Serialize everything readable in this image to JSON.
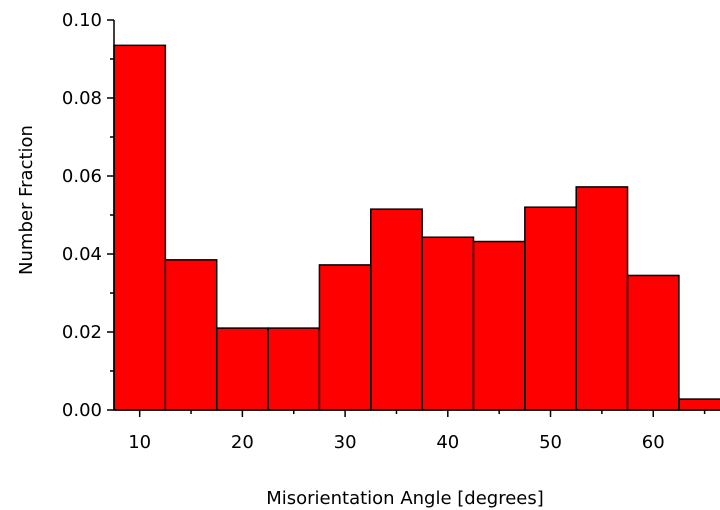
{
  "chart_data": {
    "type": "bar",
    "title": "",
    "xlabel": "Misorientation Angle [degrees]",
    "ylabel": "Number Fraction",
    "bin_width": 5,
    "bins": [
      {
        "from": 7.5,
        "to": 12.5,
        "value": 0.0935
      },
      {
        "from": 12.5,
        "to": 17.5,
        "value": 0.0385
      },
      {
        "from": 17.5,
        "to": 22.5,
        "value": 0.021
      },
      {
        "from": 22.5,
        "to": 27.5,
        "value": 0.021
      },
      {
        "from": 27.5,
        "to": 32.5,
        "value": 0.0372
      },
      {
        "from": 32.5,
        "to": 37.5,
        "value": 0.0515
      },
      {
        "from": 37.5,
        "to": 42.5,
        "value": 0.0443
      },
      {
        "from": 42.5,
        "to": 47.5,
        "value": 0.0432
      },
      {
        "from": 47.5,
        "to": 52.5,
        "value": 0.052
      },
      {
        "from": 52.5,
        "to": 57.5,
        "value": 0.0572
      },
      {
        "from": 57.5,
        "to": 62.5,
        "value": 0.0345
      },
      {
        "from": 62.5,
        "to": 67.5,
        "value": 0.0028
      }
    ],
    "xlim": [
      7.5,
      66.5
    ],
    "ylim": [
      0,
      0.1
    ],
    "xticks": [
      10,
      20,
      30,
      40,
      50,
      60
    ],
    "xtick_labels": [
      "10",
      "20",
      "30",
      "40",
      "50",
      "60"
    ],
    "yticks": [
      0,
      0.02,
      0.04,
      0.06,
      0.08,
      0.1
    ],
    "ytick_labels": [
      "0.00",
      "0.02",
      "0.04",
      "0.06",
      "0.08",
      "0.10"
    ],
    "bar_color": "#ff0000",
    "edge_color": "#000000",
    "grid": false,
    "legend": "none"
  }
}
